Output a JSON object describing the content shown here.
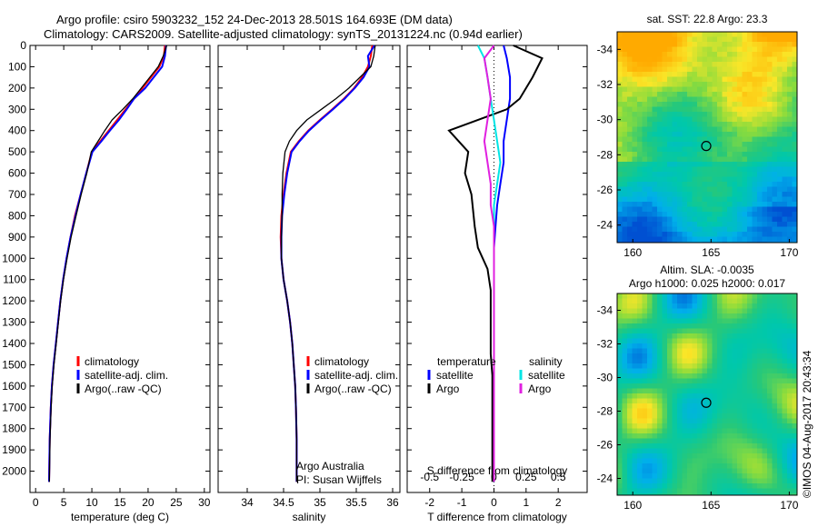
{
  "header": {
    "line1": "Argo profile: csiro 5903232_152 24-Dec-2013 28.501S 164.693E (DM data)",
    "line2": "Climatology: CARS2009. Satellite-adjusted climatology: synTS_20131224.nc (0.94d earlier)"
  },
  "colors": {
    "climatology": "#ff0000",
    "satellite": "#0000ff",
    "argo": "#000000",
    "sal_satellite": "#00e5e5",
    "sal_argo": "#e020e0"
  },
  "chart_data": [
    {
      "type": "line",
      "xlabel": "temperature (deg C)",
      "ylim": [
        2100,
        0
      ],
      "xlim": [
        -1,
        31
      ],
      "xticks": [
        0,
        5,
        10,
        15,
        20,
        25,
        30
      ],
      "yticks": [
        0,
        100,
        200,
        300,
        400,
        500,
        600,
        700,
        800,
        900,
        1000,
        1100,
        1200,
        1300,
        1400,
        1500,
        1600,
        1700,
        1800,
        1900,
        2000
      ],
      "legend": [
        "climatology",
        "satellite-adj. clim.",
        "Argo(..raw -QC)"
      ],
      "series": [
        {
          "name": "climatology",
          "x": [
            23.0,
            22.8,
            22.0,
            20.5,
            19.0,
            17.5,
            16.0,
            14.5,
            13.0,
            11.5,
            10.0,
            9.0,
            8.0,
            7.0,
            6.2,
            5.5,
            4.9,
            4.4,
            4.0,
            3.6,
            3.2,
            2.9,
            2.7,
            2.5,
            2.4
          ],
          "y": [
            0,
            50,
            100,
            150,
            200,
            250,
            300,
            350,
            400,
            450,
            500,
            600,
            700,
            800,
            900,
            1000,
            1100,
            1200,
            1300,
            1400,
            1500,
            1600,
            1700,
            1850,
            2050
          ]
        },
        {
          "name": "satellite-adj. clim.",
          "x": [
            23.2,
            23.0,
            22.5,
            21.0,
            19.5,
            17.5,
            16.2,
            14.8,
            13.2,
            11.7,
            10.1,
            9.0,
            8.0,
            7.1,
            6.2,
            5.5,
            4.9,
            4.4,
            4.0,
            3.6,
            3.2,
            2.9,
            2.7,
            2.5,
            2.4
          ],
          "y": [
            0,
            50,
            100,
            150,
            200,
            250,
            300,
            350,
            400,
            450,
            500,
            600,
            700,
            800,
            900,
            1000,
            1100,
            1200,
            1300,
            1400,
            1500,
            1600,
            1700,
            1850,
            2050
          ]
        },
        {
          "name": "Argo(..raw -QC)",
          "x": [
            23.3,
            22.7,
            21.8,
            20.3,
            18.8,
            17.3,
            15.5,
            13.6,
            12.3,
            11.1,
            9.9,
            9.1,
            8.1,
            7.2,
            6.3,
            5.6,
            4.95,
            4.45,
            4.05,
            3.65,
            3.25,
            2.95,
            2.75,
            2.55,
            2.45
          ],
          "y": [
            0,
            50,
            100,
            150,
            200,
            250,
            300,
            350,
            400,
            450,
            500,
            600,
            700,
            800,
            900,
            1000,
            1100,
            1200,
            1300,
            1400,
            1500,
            1600,
            1700,
            1850,
            2050
          ]
        }
      ]
    },
    {
      "type": "line",
      "xlabel": "salinity",
      "xlim": [
        33.6,
        36.1
      ],
      "ylim": [
        2100,
        0
      ],
      "xticks": [
        34,
        34.5,
        35,
        35.5,
        36
      ],
      "legend": [
        "climatology",
        "satellite-adj. clim.",
        "Argo(..raw -QC)"
      ],
      "annotation": [
        "Argo Australia",
        "PI: Susan Wijffels"
      ],
      "series": [
        {
          "name": "climatology",
          "x": [
            35.72,
            35.7,
            35.66,
            35.58,
            35.47,
            35.33,
            35.17,
            35.0,
            34.84,
            34.71,
            34.6,
            34.54,
            34.5,
            34.47,
            34.46,
            34.47,
            34.5,
            34.55,
            34.59,
            34.62,
            34.64,
            34.66,
            34.67,
            34.68,
            34.68
          ],
          "y": [
            0,
            50,
            100,
            150,
            200,
            250,
            300,
            350,
            400,
            450,
            500,
            600,
            700,
            800,
            900,
            1000,
            1100,
            1200,
            1300,
            1400,
            1500,
            1600,
            1700,
            1850,
            2050
          ]
        },
        {
          "name": "satellite-adj. clim.",
          "x": [
            35.75,
            35.66,
            35.68,
            35.6,
            35.48,
            35.34,
            35.18,
            35.01,
            34.85,
            34.72,
            34.61,
            34.55,
            34.51,
            34.48,
            34.47,
            34.47,
            34.5,
            34.55,
            34.59,
            34.62,
            34.64,
            34.66,
            34.67,
            34.68,
            34.68
          ],
          "y": [
            0,
            50,
            100,
            150,
            200,
            250,
            300,
            350,
            400,
            450,
            500,
            600,
            700,
            800,
            900,
            1000,
            1100,
            1200,
            1300,
            1400,
            1500,
            1600,
            1700,
            1850,
            2050
          ]
        },
        {
          "name": "Argo(..raw -QC)",
          "x": [
            35.76,
            35.74,
            35.7,
            35.55,
            35.4,
            35.22,
            35.02,
            34.82,
            34.68,
            34.58,
            34.52,
            34.49,
            34.48,
            34.48,
            34.47,
            34.47,
            34.5,
            34.55,
            34.59,
            34.62,
            34.64,
            34.66,
            34.67,
            34.68,
            34.68
          ],
          "y": [
            0,
            50,
            100,
            150,
            200,
            250,
            300,
            350,
            400,
            450,
            500,
            600,
            700,
            800,
            900,
            1000,
            1100,
            1200,
            1300,
            1400,
            1500,
            1600,
            1700,
            1850,
            2050
          ]
        }
      ]
    },
    {
      "type": "line",
      "xlabel_top": "S difference from climatology",
      "xlabel": "T difference from climatology",
      "xlim": [
        -2.7,
        2.9
      ],
      "ylim": [
        2100,
        0
      ],
      "xticks_bottom": [
        "-2",
        "-1",
        "0",
        "1",
        "2"
      ],
      "xticks_bottom_values": [
        -2,
        -1,
        0,
        1,
        2
      ],
      "xticks_top": [
        "-0.5",
        "-0.25",
        "0",
        "0.25",
        "0.5"
      ],
      "xticks_top_values": [
        -2,
        -1,
        0,
        1,
        2
      ],
      "legend_left_title": "temperature",
      "legend_right_title": "salinity",
      "legend": [
        "satellite",
        "Argo",
        "satellite",
        "Argo"
      ],
      "series": [
        {
          "name": "satellite",
          "x": [
            0.3,
            0.4,
            0.5,
            0.5,
            0.4,
            0.3,
            0.3,
            0.2,
            0.1,
            0.05,
            0.0,
            0.0,
            0.0,
            0.0,
            0.0,
            0.0,
            0.0,
            0.0,
            0.0,
            0.0,
            0.0
          ],
          "y": [
            0,
            60,
            150,
            250,
            350,
            450,
            550,
            650,
            750,
            850,
            950,
            1050,
            1150,
            1250,
            1350,
            1450,
            1550,
            1650,
            1750,
            1850,
            2050
          ]
        },
        {
          "name": "Argo",
          "x": [
            0.6,
            1.5,
            1.2,
            0.8,
            0.4,
            -1.4,
            -0.8,
            -0.9,
            -0.7,
            -0.6,
            -0.5,
            -0.2,
            -0.1,
            -0.1,
            -0.1,
            -0.1,
            -0.05,
            -0.05,
            -0.05,
            -0.05,
            -0.05
          ],
          "y": [
            0,
            60,
            150,
            250,
            300,
            400,
            500,
            600,
            700,
            850,
            950,
            1050,
            1150,
            1250,
            1350,
            1450,
            1550,
            1650,
            1750,
            1850,
            2050
          ]
        },
        {
          "name": "satellite",
          "x": [
            -0.5,
            -0.3,
            -0.2,
            -0.1,
            0.0,
            0.1,
            0.2,
            0.1,
            0.0,
            0.0,
            0.0,
            0.0,
            0.0,
            0.0,
            0.0,
            0.0,
            0.0,
            0.0,
            0.0,
            0.0,
            0.0
          ],
          "y": [
            0,
            60,
            150,
            250,
            350,
            450,
            550,
            650,
            750,
            850,
            950,
            1050,
            1150,
            1250,
            1350,
            1450,
            1550,
            1650,
            1750,
            1850,
            2050
          ]
        },
        {
          "name": "Argo",
          "x": [
            0.0,
            -0.3,
            -0.2,
            -0.1,
            -0.2,
            -0.3,
            -0.2,
            -0.1,
            -0.1,
            0.0,
            0.0,
            0.0,
            0.0,
            0.0,
            0.0,
            0.0,
            0.0,
            0.0,
            0.0,
            0.0,
            0.0
          ],
          "y": [
            0,
            60,
            150,
            250,
            350,
            450,
            550,
            650,
            750,
            850,
            950,
            1050,
            1150,
            1250,
            1350,
            1450,
            1550,
            1650,
            1750,
            1850,
            2050
          ]
        }
      ]
    },
    {
      "type": "heatmap",
      "title": "sat. SST: 22.8 Argo: 23.3",
      "xticks": [
        160,
        165,
        170
      ],
      "yticks": [
        -24,
        -26,
        -28,
        -30,
        -32,
        -34
      ],
      "xlim": [
        159,
        170.5
      ],
      "ylim": [
        -35,
        -23
      ],
      "marker": {
        "lon": 164.693,
        "lat": -28.501
      }
    },
    {
      "type": "heatmap",
      "title_line1": "Altim. SLA: -0.0035",
      "title_line2": "Argo h1000: 0.025 h2000: 0.017",
      "xticks": [
        160,
        165,
        170
      ],
      "yticks": [
        -24,
        -26,
        -28,
        -30,
        -32,
        -34
      ],
      "xlim": [
        159,
        170.5
      ],
      "ylim": [
        -35,
        -23
      ],
      "marker": {
        "lon": 164.693,
        "lat": -28.501
      }
    }
  ],
  "footer": {
    "stamp": "©IMOS 04-Aug-2017 20:43:34"
  }
}
